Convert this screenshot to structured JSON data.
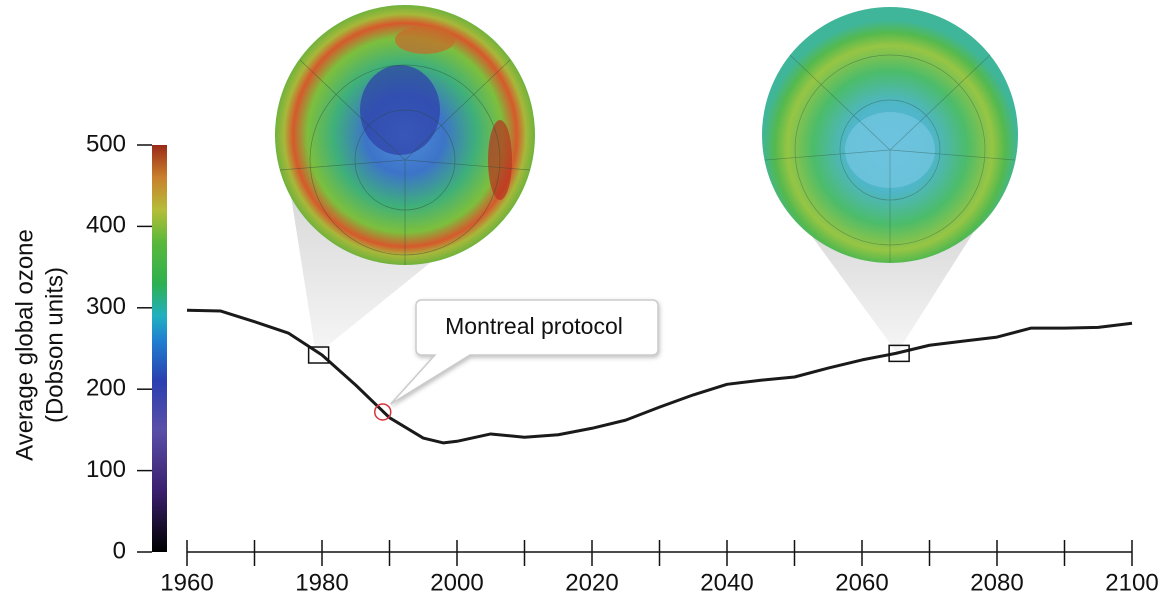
{
  "chart_data": {
    "type": "line",
    "ylabel": [
      "Average global ozone",
      "(Dobson units)"
    ],
    "x": [
      1960,
      1965,
      1970,
      1975,
      1980,
      1985,
      1990,
      1995,
      1998,
      2000,
      2005,
      2010,
      2015,
      2020,
      2025,
      2030,
      2035,
      2040,
      2045,
      2050,
      2055,
      2060,
      2065,
      2070,
      2075,
      2080,
      2085,
      2090,
      2095,
      2100
    ],
    "values": [
      297,
      296,
      283,
      269,
      242,
      205,
      165,
      140,
      134,
      136,
      145,
      141,
      144,
      152,
      162,
      178,
      193,
      206,
      211,
      215,
      226,
      236,
      244,
      254,
      259,
      264,
      275,
      275,
      276,
      281
    ],
    "color": "#1a1a1a",
    "xlim": [
      1960,
      2100
    ],
    "xticks": [
      1960,
      1980,
      2000,
      2020,
      2040,
      2060,
      2080,
      2100
    ],
    "ylim": [
      0,
      500
    ],
    "yticks": [
      0,
      100,
      200,
      300,
      400,
      500
    ],
    "markers": [
      {
        "x": 1979.5,
        "y": 242
      },
      {
        "x": 2065.5,
        "y": 244
      }
    ],
    "annotation": {
      "text": "Montreal protocol",
      "x": 1989,
      "y": 172,
      "color": "#d9323c"
    }
  }
}
